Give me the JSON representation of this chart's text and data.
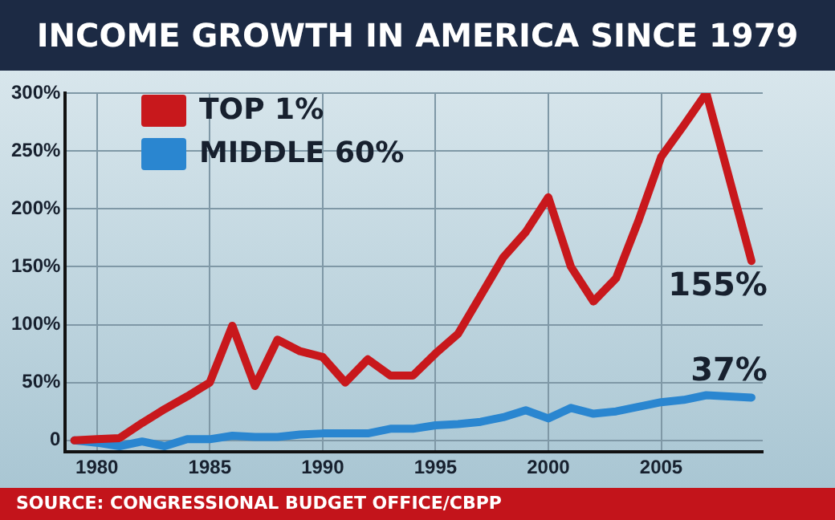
{
  "chart_data": {
    "type": "line",
    "title": "INCOME GROWTH IN AMERICA SINCE 1979",
    "x": [
      1979,
      1980,
      1981,
      1982,
      1983,
      1984,
      1985,
      1986,
      1987,
      1988,
      1989,
      1990,
      1991,
      1992,
      1993,
      1994,
      1995,
      1996,
      1997,
      1998,
      1999,
      2000,
      2001,
      2002,
      2003,
      2004,
      2005,
      2006,
      2007,
      2009
    ],
    "series": [
      {
        "name": "TOP 1%",
        "color": "#c8181c",
        "values": [
          0,
          1,
          2,
          15,
          27,
          38,
          50,
          99,
          47,
          87,
          77,
          72,
          50,
          70,
          56,
          56,
          75,
          92,
          125,
          158,
          180,
          210,
          150,
          120,
          140,
          190,
          245,
          272,
          300,
          155
        ],
        "value_labels": [
          null,
          null,
          null,
          null,
          null,
          null,
          null,
          null,
          null,
          null,
          null,
          null,
          null,
          null,
          null,
          null,
          null,
          null,
          null,
          null,
          null,
          null,
          null,
          null,
          null,
          null,
          null,
          null,
          null,
          "155%"
        ]
      },
      {
        "name": "MIDDLE 60%",
        "color": "#2a86d0",
        "values": [
          0,
          -2,
          -5,
          -1,
          -5,
          1,
          1,
          4,
          3,
          3,
          5,
          6,
          6,
          6,
          10,
          10,
          13,
          14,
          16,
          20,
          26,
          19,
          28,
          23,
          25,
          29,
          33,
          35,
          39,
          37
        ],
        "value_labels": [
          null,
          null,
          null,
          null,
          null,
          null,
          null,
          null,
          null,
          null,
          null,
          null,
          null,
          null,
          null,
          null,
          null,
          null,
          null,
          null,
          null,
          null,
          null,
          null,
          null,
          null,
          null,
          null,
          null,
          "37%"
        ]
      }
    ],
    "xlim": [
      1978.6,
      2009.5
    ],
    "xticks": [
      1980,
      1985,
      1990,
      1995,
      2000,
      2005
    ],
    "ylim": [
      -10,
      300
    ],
    "yticks": [
      {
        "value": 0,
        "label": "0"
      },
      {
        "value": 50,
        "label": "50%"
      },
      {
        "value": 100,
        "label": "100%"
      },
      {
        "value": 150,
        "label": "150%"
      },
      {
        "value": 200,
        "label": "200%"
      },
      {
        "value": 250,
        "label": "250%"
      },
      {
        "value": 300,
        "label": "300%"
      }
    ],
    "grid": true,
    "legend": "top left",
    "marker": "none",
    "line_style": "solid",
    "annotations": [
      "SOURCE:  CONGRESSIONAL BUDGET OFFICE/CBPP"
    ]
  }
}
